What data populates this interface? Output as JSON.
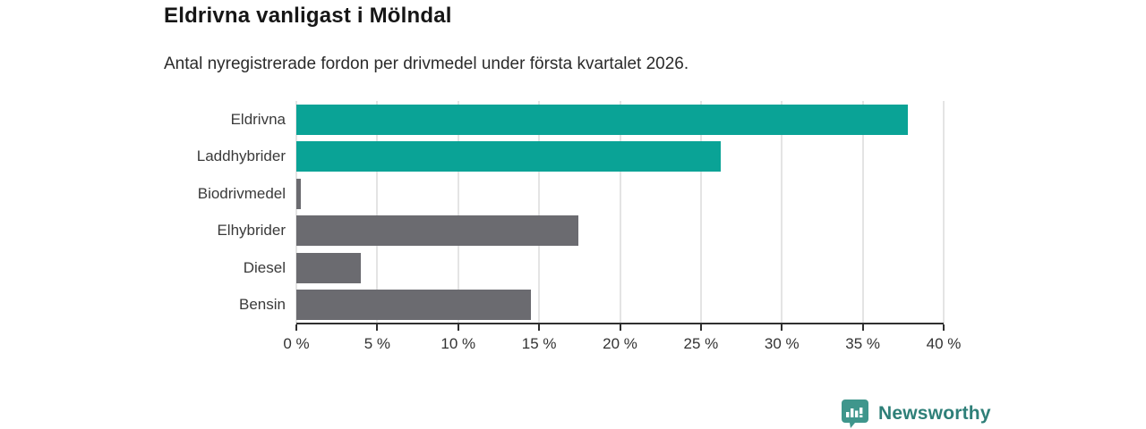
{
  "header": {
    "title": "Eldrivna vanligast i Mölndal",
    "subtitle": "Antal nyregistrerade fordon per drivmedel under första kvartalet 2026."
  },
  "chart_data": {
    "type": "bar",
    "orientation": "horizontal",
    "title": "Eldrivna vanligast i Mölndal",
    "subtitle": "Antal nyregistrerade fordon per drivmedel under första kvartalet 2026.",
    "categories": [
      "Eldrivna",
      "Laddhybrider",
      "Biodrivmedel",
      "Elhybrider",
      "Diesel",
      "Bensin"
    ],
    "values": [
      37.8,
      26.2,
      0.3,
      17.4,
      4.0,
      14.5
    ],
    "unit": "%",
    "xlabel": "",
    "ylabel": "",
    "xlim": [
      0,
      40
    ],
    "tick_values": [
      0,
      5,
      10,
      15,
      20,
      25,
      30,
      35,
      40
    ],
    "tick_labels": [
      "0 %",
      "5 %",
      "10 %",
      "15 %",
      "20 %",
      "25 %",
      "30 %",
      "35 %",
      "40 %"
    ],
    "bar_colors": [
      "#0aa396",
      "#0aa396",
      "#6b6b70",
      "#6b6b70",
      "#6b6b70",
      "#6b6b70"
    ],
    "grid": true,
    "legend": false
  },
  "footer": {
    "brand": "Newsworthy",
    "icon": "newsworthy-logo-icon"
  },
  "colors": {
    "teal": "#0aa396",
    "gray": "#6b6b70",
    "axis": "#2f2f2f",
    "gridline": "#e4e4e4",
    "brand_teal": "#2e7f78",
    "brand_icon": "#3f968c"
  }
}
